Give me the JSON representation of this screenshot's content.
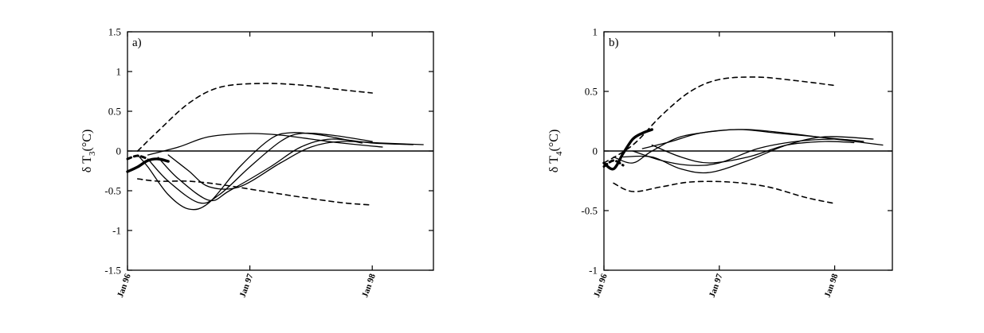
{
  "chart_data": [
    {
      "type": "line",
      "panel_label": "a)",
      "ylabel": {
        "prefix": "δ T",
        "subscript": "3",
        "unit": "(°C)"
      },
      "ylim": [
        -1.5,
        1.5
      ],
      "yticks": [
        "1.5",
        "1",
        "0.5",
        "0",
        "-0.5",
        "-1",
        "-1.5"
      ],
      "xlim": [
        "1996-01",
        "1998-07"
      ],
      "xticks": [
        "Jan 96",
        "Jan 97",
        "Jan 98"
      ],
      "grid": false,
      "reference_line": 0,
      "series": [
        {
          "style": "dashed",
          "points": [
            [
              "1996-02",
              0.0
            ],
            [
              "1996-04",
              0.25
            ],
            [
              "1996-07",
              0.6
            ],
            [
              "1996-10",
              0.8
            ],
            [
              "1997-02",
              0.85
            ],
            [
              "1997-06",
              0.83
            ],
            [
              "1997-10",
              0.77
            ],
            [
              "1998-01",
              0.73
            ]
          ]
        },
        {
          "style": "dashed",
          "points": [
            [
              "1996-02",
              -0.35
            ],
            [
              "1996-04",
              -0.38
            ],
            [
              "1996-07",
              -0.38
            ],
            [
              "1996-10",
              -0.42
            ],
            [
              "1997-02",
              -0.5
            ],
            [
              "1997-06",
              -0.58
            ],
            [
              "1997-10",
              -0.65
            ],
            [
              "1998-01",
              -0.68
            ]
          ]
        },
        {
          "style": "thick",
          "points": [
            [
              "1996-01",
              -0.26
            ],
            [
              "1996-02",
              -0.2
            ],
            [
              "1996-03",
              -0.12
            ],
            [
              "1996-04",
              -0.1
            ],
            [
              "1996-05",
              -0.13
            ]
          ]
        },
        {
          "style": "thick-dashed",
          "points": [
            [
              "1996-01",
              -0.1
            ],
            [
              "1996-02",
              -0.06
            ],
            [
              "1996-03",
              -0.1
            ]
          ]
        },
        {
          "style": "thin",
          "points": [
            [
              "1996-02",
              -0.05
            ],
            [
              "1996-03",
              -0.2
            ],
            [
              "1996-05",
              -0.55
            ],
            [
              "1996-07",
              -0.73
            ],
            [
              "1996-09",
              -0.65
            ],
            [
              "1996-12",
              -0.2
            ],
            [
              "1997-03",
              0.15
            ],
            [
              "1997-05",
              0.23
            ],
            [
              "1997-08",
              0.2
            ],
            [
              "1997-12",
              0.1
            ]
          ]
        },
        {
          "style": "thin",
          "points": [
            [
              "1996-03",
              -0.1
            ],
            [
              "1996-05",
              -0.38
            ],
            [
              "1996-08",
              -0.65
            ],
            [
              "1996-10",
              -0.55
            ],
            [
              "1997-01",
              -0.2
            ],
            [
              "1997-04",
              0.12
            ],
            [
              "1997-06",
              0.22
            ],
            [
              "1997-09",
              0.2
            ],
            [
              "1998-01",
              0.12
            ]
          ]
        },
        {
          "style": "thin",
          "points": [
            [
              "1996-04",
              -0.08
            ],
            [
              "1996-06",
              -0.35
            ],
            [
              "1996-09",
              -0.62
            ],
            [
              "1996-11",
              -0.5
            ],
            [
              "1997-03",
              -0.2
            ],
            [
              "1997-06",
              0.05
            ],
            [
              "1997-09",
              0.15
            ],
            [
              "1998-01",
              0.1
            ],
            [
              "1998-05",
              0.08
            ]
          ]
        },
        {
          "style": "thin",
          "points": [
            [
              "1996-05",
              -0.05
            ],
            [
              "1996-07",
              -0.25
            ],
            [
              "1996-09",
              -0.45
            ],
            [
              "1996-12",
              -0.45
            ],
            [
              "1997-04",
              -0.15
            ],
            [
              "1997-07",
              0.05
            ],
            [
              "1997-10",
              0.12
            ],
            [
              "1998-02",
              0.1
            ],
            [
              "1998-06",
              0.08
            ]
          ]
        },
        {
          "style": "thin",
          "points": [
            [
              "1996-03",
              -0.05
            ],
            [
              "1996-06",
              0.05
            ],
            [
              "1996-09",
              0.18
            ],
            [
              "1997-01",
              0.22
            ],
            [
              "1997-04",
              0.2
            ],
            [
              "1997-07",
              0.15
            ],
            [
              "1997-10",
              0.1
            ],
            [
              "1998-02",
              0.05
            ]
          ]
        }
      ]
    },
    {
      "type": "line",
      "panel_label": "b)",
      "ylabel": {
        "prefix": "δ T",
        "subscript": "4",
        "unit": "(°C)"
      },
      "ylim": [
        -1,
        1
      ],
      "yticks": [
        "1",
        "0.5",
        "0",
        "-0.5",
        "-1"
      ],
      "xlim": [
        "1996-01",
        "1998-07"
      ],
      "xticks": [
        "Jan 96",
        "Jan 97",
        "Jan 98"
      ],
      "grid": false,
      "reference_line": 0,
      "series": [
        {
          "style": "dashed",
          "points": [
            [
              "1996-01",
              -0.1
            ],
            [
              "1996-04",
              0.05
            ],
            [
              "1996-07",
              0.3
            ],
            [
              "1996-10",
              0.5
            ],
            [
              "1997-01",
              0.6
            ],
            [
              "1997-05",
              0.62
            ],
            [
              "1997-09",
              0.59
            ],
            [
              "1998-01",
              0.55
            ]
          ]
        },
        {
          "style": "dashed",
          "points": [
            [
              "1996-02",
              -0.27
            ],
            [
              "1996-04",
              -0.34
            ],
            [
              "1996-07",
              -0.3
            ],
            [
              "1996-10",
              -0.26
            ],
            [
              "1997-02",
              -0.26
            ],
            [
              "1997-06",
              -0.3
            ],
            [
              "1997-10",
              -0.39
            ],
            [
              "1998-01",
              -0.44
            ]
          ]
        },
        {
          "style": "thick",
          "points": [
            [
              "1996-01",
              -0.1
            ],
            [
              "1996-02",
              -0.15
            ],
            [
              "1996-03",
              -0.02
            ],
            [
              "1996-04",
              0.1
            ],
            [
              "1996-05",
              0.15
            ],
            [
              "1996-06",
              0.18
            ]
          ]
        },
        {
          "style": "thick-dashed",
          "points": [
            [
              "1996-01",
              -0.13
            ],
            [
              "1996-02",
              -0.08
            ],
            [
              "1996-03",
              -0.12
            ]
          ]
        },
        {
          "style": "thin",
          "points": [
            [
              "1996-02",
              -0.05
            ],
            [
              "1996-04",
              -0.1
            ],
            [
              "1996-06",
              0.0
            ],
            [
              "1996-09",
              0.12
            ],
            [
              "1997-01",
              0.17
            ],
            [
              "1997-04",
              0.18
            ],
            [
              "1997-08",
              0.15
            ],
            [
              "1998-01",
              0.1
            ],
            [
              "1998-06",
              0.05
            ]
          ]
        },
        {
          "style": "thin",
          "points": [
            [
              "1996-03",
              -0.05
            ],
            [
              "1996-06",
              -0.05
            ],
            [
              "1996-09",
              -0.15
            ],
            [
              "1996-12",
              -0.18
            ],
            [
              "1997-04",
              -0.08
            ],
            [
              "1997-08",
              0.05
            ],
            [
              "1997-12",
              0.12
            ],
            [
              "1998-05",
              0.1
            ]
          ]
        },
        {
          "style": "thin",
          "points": [
            [
              "1996-04",
              0.0
            ],
            [
              "1996-07",
              -0.08
            ],
            [
              "1996-10",
              -0.12
            ],
            [
              "1997-01",
              -0.1
            ],
            [
              "1997-05",
              0.02
            ],
            [
              "1997-09",
              0.08
            ],
            [
              "1998-01",
              0.1
            ],
            [
              "1998-04",
              0.08
            ]
          ]
        },
        {
          "style": "thin",
          "points": [
            [
              "1996-05",
              0.02
            ],
            [
              "1996-08",
              0.08
            ],
            [
              "1996-11",
              0.15
            ],
            [
              "1997-03",
              0.18
            ],
            [
              "1997-07",
              0.15
            ],
            [
              "1997-11",
              0.12
            ],
            [
              "1998-04",
              0.08
            ]
          ]
        },
        {
          "style": "thin",
          "points": [
            [
              "1996-06",
              0.05
            ],
            [
              "1996-09",
              -0.05
            ],
            [
              "1996-12",
              -0.1
            ],
            [
              "1997-04",
              -0.05
            ],
            [
              "1997-08",
              0.05
            ],
            [
              "1997-12",
              0.08
            ],
            [
              "1998-03",
              0.07
            ]
          ]
        }
      ]
    }
  ]
}
